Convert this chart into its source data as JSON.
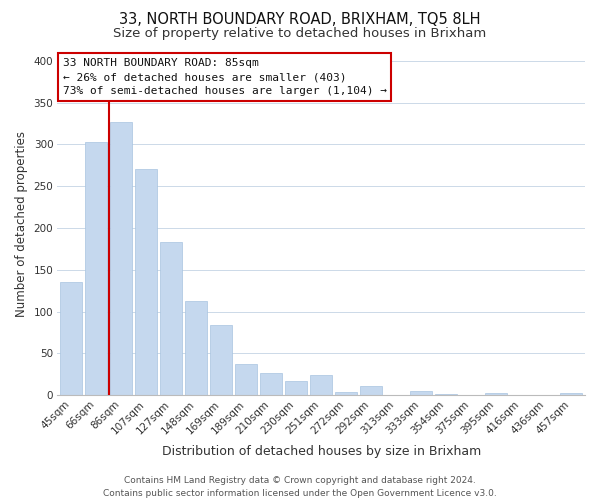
{
  "title": "33, NORTH BOUNDARY ROAD, BRIXHAM, TQ5 8LH",
  "subtitle": "Size of property relative to detached houses in Brixham",
  "xlabel": "Distribution of detached houses by size in Brixham",
  "ylabel": "Number of detached properties",
  "categories": [
    "45sqm",
    "66sqm",
    "86sqm",
    "107sqm",
    "127sqm",
    "148sqm",
    "169sqm",
    "189sqm",
    "210sqm",
    "230sqm",
    "251sqm",
    "272sqm",
    "292sqm",
    "313sqm",
    "333sqm",
    "354sqm",
    "375sqm",
    "395sqm",
    "416sqm",
    "436sqm",
    "457sqm"
  ],
  "values": [
    135,
    303,
    327,
    271,
    183,
    113,
    84,
    37,
    27,
    17,
    24,
    4,
    11,
    0,
    5,
    1,
    0,
    2,
    0,
    0,
    3
  ],
  "bar_color": "#c5d8ee",
  "bar_edge_color": "#a8c4e0",
  "vline_x": 1.5,
  "vline_color": "#cc0000",
  "ylim": [
    0,
    410
  ],
  "yticks": [
    0,
    50,
    100,
    150,
    200,
    250,
    300,
    350,
    400
  ],
  "annotation_title": "33 NORTH BOUNDARY ROAD: 85sqm",
  "annotation_line1": "← 26% of detached houses are smaller (403)",
  "annotation_line2": "73% of semi-detached houses are larger (1,104) →",
  "footer_line1": "Contains HM Land Registry data © Crown copyright and database right 2024.",
  "footer_line2": "Contains public sector information licensed under the Open Government Licence v3.0.",
  "background_color": "#ffffff",
  "grid_color": "#ccd9e8",
  "title_fontsize": 10.5,
  "subtitle_fontsize": 9.5,
  "xlabel_fontsize": 9,
  "ylabel_fontsize": 8.5,
  "tick_fontsize": 7.5,
  "annotation_fontsize": 8,
  "footer_fontsize": 6.5
}
